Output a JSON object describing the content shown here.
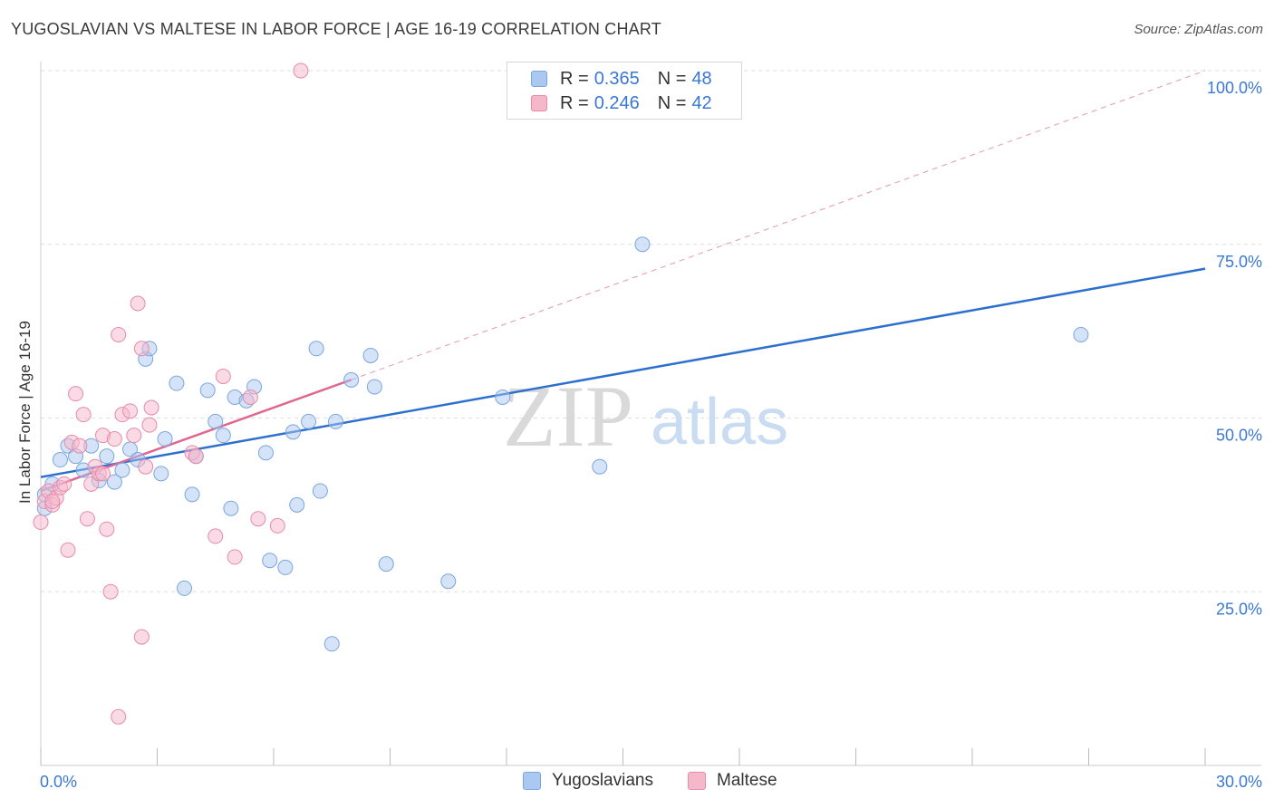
{
  "header": {
    "title": "YUGOSLAVIAN VS MALTESE IN LABOR FORCE | AGE 16-19 CORRELATION CHART",
    "source": "Source: ZipAtlas.com"
  },
  "legend": {
    "r_label": "R =",
    "n_label": "N =",
    "rows": [
      {
        "r": "0.365",
        "n": "48"
      },
      {
        "r": "0.246",
        "n": "42"
      }
    ]
  },
  "colors": {
    "blue_fill": "#aac8f0",
    "blue_stroke": "#7aa6e0",
    "blue_line": "#2c6fce",
    "pink_fill": "#f5b8cb",
    "pink_stroke": "#e88aa8",
    "pink_line": "#e0668f",
    "axis_text": "#3a78d4",
    "grid": "#dddddd"
  },
  "watermark": {
    "zip": "ZIP",
    "atlas": "atlas"
  },
  "chart_data": {
    "type": "scatter",
    "xlabel": "",
    "ylabel": "In Labor Force | Age 16-19",
    "xlim": [
      0,
      30
    ],
    "ylim": [
      0,
      100
    ],
    "x_tick_labels": [
      "0.0%",
      "30.0%"
    ],
    "y_ticks": [
      25,
      50,
      75,
      100
    ],
    "y_tick_labels": [
      "25.0%",
      "50.0%",
      "75.0%",
      "100.0%"
    ],
    "grid": true,
    "legend_position": "top-center",
    "series": [
      {
        "name": "Yugoslavians",
        "color": "#aac8f0",
        "points": [
          [
            0.1,
            39.0
          ],
          [
            0.1,
            37.0
          ],
          [
            0.3,
            40.5
          ],
          [
            0.5,
            44.0
          ],
          [
            0.7,
            46.0
          ],
          [
            0.9,
            44.5
          ],
          [
            1.1,
            42.5
          ],
          [
            1.3,
            46.0
          ],
          [
            1.5,
            41.0
          ],
          [
            1.7,
            44.5
          ],
          [
            1.9,
            40.8
          ],
          [
            2.1,
            42.5
          ],
          [
            2.3,
            45.5
          ],
          [
            2.5,
            44.0
          ],
          [
            2.7,
            58.5
          ],
          [
            2.8,
            60.0
          ],
          [
            3.1,
            42.0
          ],
          [
            3.2,
            47.0
          ],
          [
            3.5,
            55.0
          ],
          [
            3.7,
            25.5
          ],
          [
            3.9,
            39.0
          ],
          [
            4.0,
            44.5
          ],
          [
            4.3,
            54.0
          ],
          [
            4.5,
            49.5
          ],
          [
            4.7,
            47.5
          ],
          [
            4.9,
            37.0
          ],
          [
            5.0,
            53.0
          ],
          [
            5.3,
            52.5
          ],
          [
            5.5,
            54.5
          ],
          [
            5.8,
            45.0
          ],
          [
            5.9,
            29.5
          ],
          [
            6.3,
            28.5
          ],
          [
            6.5,
            48.0
          ],
          [
            6.6,
            37.5
          ],
          [
            6.9,
            49.5
          ],
          [
            7.1,
            60.0
          ],
          [
            7.2,
            39.5
          ],
          [
            7.5,
            17.5
          ],
          [
            7.6,
            49.5
          ],
          [
            8.0,
            55.5
          ],
          [
            8.5,
            59.0
          ],
          [
            8.6,
            54.5
          ],
          [
            8.9,
            29.0
          ],
          [
            10.5,
            26.5
          ],
          [
            11.9,
            53.0
          ],
          [
            14.4,
            43.0
          ],
          [
            15.5,
            75.0
          ],
          [
            26.8,
            62.0
          ]
        ]
      },
      {
        "name": "Maltese",
        "color": "#f5b8cb",
        "points": [
          [
            0.0,
            35.0
          ],
          [
            0.1,
            38.0
          ],
          [
            0.2,
            39.5
          ],
          [
            0.3,
            37.5
          ],
          [
            0.4,
            38.5
          ],
          [
            0.5,
            40.0
          ],
          [
            0.6,
            40.5
          ],
          [
            0.7,
            31.0
          ],
          [
            0.8,
            46.5
          ],
          [
            0.9,
            53.5
          ],
          [
            1.0,
            46.0
          ],
          [
            1.1,
            50.5
          ],
          [
            1.2,
            35.5
          ],
          [
            1.3,
            40.5
          ],
          [
            1.4,
            43.0
          ],
          [
            1.5,
            42.0
          ],
          [
            1.6,
            47.5
          ],
          [
            1.7,
            34.0
          ],
          [
            1.8,
            25.0
          ],
          [
            1.9,
            47.0
          ],
          [
            2.0,
            7.0
          ],
          [
            2.0,
            62.0
          ],
          [
            2.1,
            50.5
          ],
          [
            2.3,
            51.0
          ],
          [
            2.4,
            47.5
          ],
          [
            2.5,
            66.5
          ],
          [
            2.6,
            18.5
          ],
          [
            2.6,
            60.0
          ],
          [
            2.7,
            43.0
          ],
          [
            2.8,
            49.0
          ],
          [
            2.85,
            51.5
          ],
          [
            3.9,
            45.0
          ],
          [
            4.0,
            44.5
          ],
          [
            4.5,
            33.0
          ],
          [
            4.7,
            56.0
          ],
          [
            5.0,
            30.0
          ],
          [
            5.4,
            53.0
          ],
          [
            5.6,
            35.5
          ],
          [
            6.1,
            34.5
          ],
          [
            6.7,
            100.0
          ],
          [
            0.3,
            38.0
          ],
          [
            1.6,
            42.0
          ]
        ]
      }
    ],
    "trend_lines": [
      {
        "series": "Yugoslavians",
        "x": [
          0,
          30
        ],
        "y": [
          41.5,
          71.5
        ],
        "style": "solid"
      },
      {
        "series": "Maltese",
        "x": [
          0,
          8.0
        ],
        "y": [
          39.5,
          55.5
        ],
        "style": "solid"
      },
      {
        "series": "Maltese",
        "x": [
          8.0,
          30
        ],
        "y": [
          55.5,
          100.0
        ],
        "style": "dashed"
      }
    ]
  }
}
